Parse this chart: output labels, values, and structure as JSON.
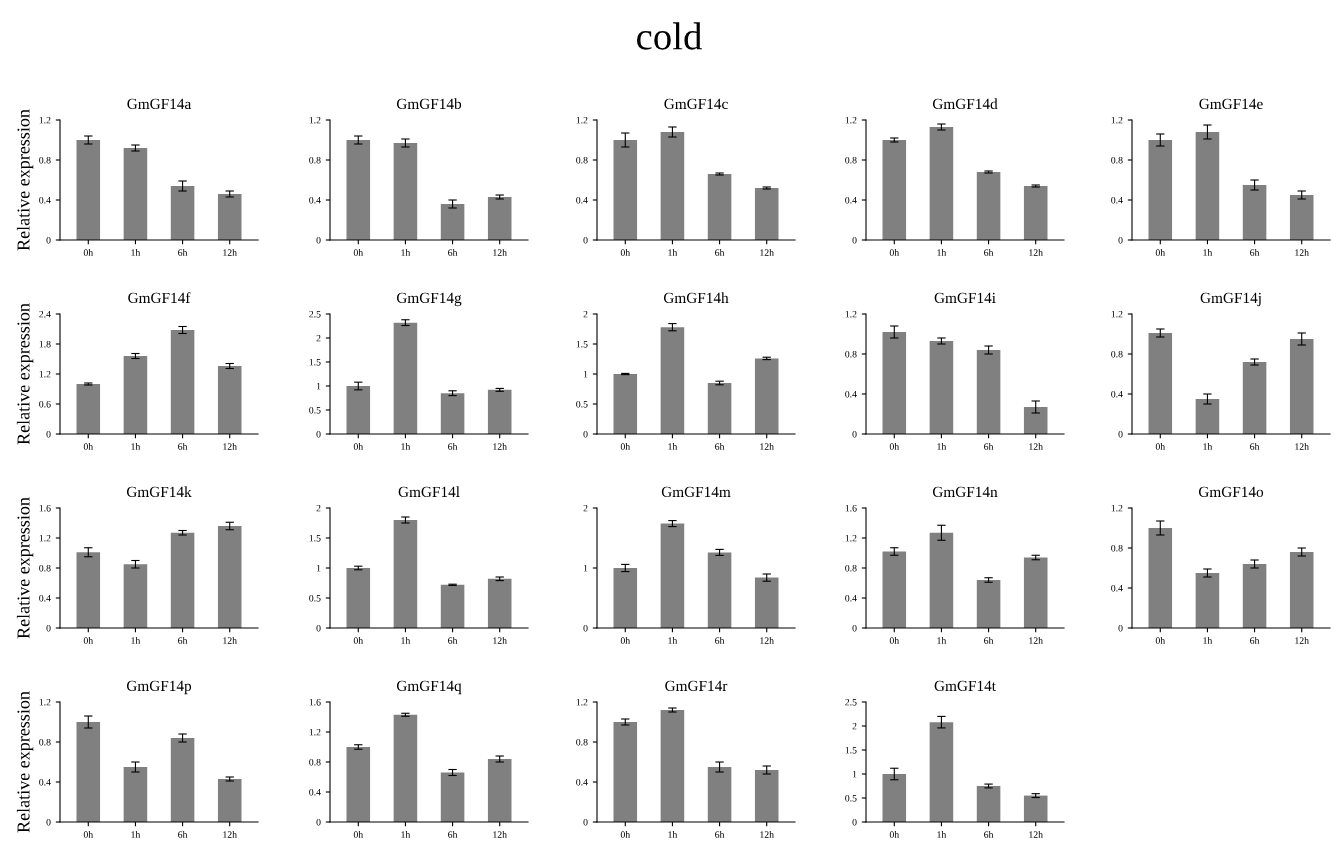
{
  "chart_data": [
    {
      "type": "bar",
      "title": "GmGF14a",
      "ylabel": "Relative expression",
      "annotations": [
        "cold"
      ],
      "categories": [
        "0h",
        "1h",
        "6h",
        "12h"
      ],
      "color": "#808080",
      "values": [
        1.0,
        0.92,
        0.54,
        0.46
      ],
      "errors": [
        0.04,
        0.03,
        0.05,
        0.03
      ],
      "ylim": [
        0,
        1.2
      ],
      "yticks": [
        0,
        0.4,
        0.8,
        1.2
      ],
      "grid": false,
      "legend": false
    },
    {
      "type": "bar",
      "title": "GmGF14b",
      "categories": [
        "0h",
        "1h",
        "6h",
        "12h"
      ],
      "color": "#808080",
      "values": [
        1.0,
        0.97,
        0.36,
        0.43
      ],
      "errors": [
        0.04,
        0.04,
        0.04,
        0.02
      ],
      "ylim": [
        0,
        1.2
      ],
      "yticks": [
        0,
        0.4,
        0.8,
        1.2
      ],
      "grid": false,
      "legend": false
    },
    {
      "type": "bar",
      "title": "GmGF14c",
      "categories": [
        "0h",
        "1h",
        "6h",
        "12h"
      ],
      "color": "#808080",
      "values": [
        1.0,
        1.08,
        0.66,
        0.52
      ],
      "errors": [
        0.07,
        0.05,
        0.01,
        0.01
      ],
      "ylim": [
        0,
        1.2
      ],
      "yticks": [
        0,
        0.4,
        0.8,
        1.2
      ],
      "grid": false,
      "legend": false
    },
    {
      "type": "bar",
      "title": "GmGF14d",
      "categories": [
        "0h",
        "1h",
        "6h",
        "12h"
      ],
      "color": "#808080",
      "values": [
        1.0,
        1.13,
        0.68,
        0.54
      ],
      "errors": [
        0.02,
        0.03,
        0.01,
        0.01
      ],
      "ylim": [
        0,
        1.2
      ],
      "yticks": [
        0,
        0.4,
        0.8,
        1.2
      ],
      "grid": false,
      "legend": false
    },
    {
      "type": "bar",
      "title": "GmGF14e",
      "categories": [
        "0h",
        "1h",
        "6h",
        "12h"
      ],
      "color": "#808080",
      "values": [
        1.0,
        1.08,
        0.55,
        0.45
      ],
      "errors": [
        0.06,
        0.07,
        0.05,
        0.04
      ],
      "ylim": [
        0,
        1.2
      ],
      "yticks": [
        0,
        0.4,
        0.8,
        1.2
      ],
      "grid": false,
      "legend": false
    },
    {
      "type": "bar",
      "title": "GmGF14f",
      "ylabel": "Relative expression",
      "categories": [
        "0h",
        "1h",
        "6h",
        "12h"
      ],
      "color": "#808080",
      "values": [
        1.0,
        1.56,
        2.08,
        1.36
      ],
      "errors": [
        0.02,
        0.05,
        0.07,
        0.05
      ],
      "ylim": [
        0,
        2.4
      ],
      "yticks": [
        0,
        0.6,
        1.2,
        1.8,
        2.4
      ],
      "grid": false,
      "legend": false
    },
    {
      "type": "bar",
      "title": "GmGF14g",
      "categories": [
        "0h",
        "1h",
        "6h",
        "12h"
      ],
      "color": "#808080",
      "values": [
        1.0,
        2.32,
        0.85,
        0.92
      ],
      "errors": [
        0.08,
        0.06,
        0.05,
        0.03
      ],
      "ylim": [
        0,
        2.5
      ],
      "yticks": [
        0,
        0.5,
        1,
        1.5,
        2,
        2.5
      ],
      "grid": false,
      "legend": false
    },
    {
      "type": "bar",
      "title": "GmGF14h",
      "categories": [
        "0h",
        "1h",
        "6h",
        "12h"
      ],
      "color": "#808080",
      "values": [
        1.0,
        1.78,
        0.85,
        1.26
      ],
      "errors": [
        0.01,
        0.06,
        0.03,
        0.02
      ],
      "ylim": [
        0,
        2
      ],
      "yticks": [
        0,
        0.5,
        1,
        1.5,
        2
      ],
      "grid": false,
      "legend": false
    },
    {
      "type": "bar",
      "title": "GmGF14i",
      "categories": [
        "0h",
        "1h",
        "6h",
        "12h"
      ],
      "color": "#808080",
      "values": [
        1.02,
        0.93,
        0.84,
        0.27
      ],
      "errors": [
        0.06,
        0.03,
        0.04,
        0.06
      ],
      "ylim": [
        0,
        1.2
      ],
      "yticks": [
        0,
        0.4,
        0.8,
        1.2
      ],
      "grid": false,
      "legend": false
    },
    {
      "type": "bar",
      "title": "GmGF14j",
      "categories": [
        "0h",
        "1h",
        "6h",
        "12h"
      ],
      "color": "#808080",
      "values": [
        1.01,
        0.35,
        0.72,
        0.95
      ],
      "errors": [
        0.04,
        0.05,
        0.03,
        0.06
      ],
      "ylim": [
        0,
        1.2
      ],
      "yticks": [
        0,
        0.4,
        0.8,
        1.2
      ],
      "grid": false,
      "legend": false
    },
    {
      "type": "bar",
      "title": "GmGF14k",
      "ylabel": "Relative expression",
      "categories": [
        "0h",
        "1h",
        "6h",
        "12h"
      ],
      "color": "#808080",
      "values": [
        1.01,
        0.85,
        1.27,
        1.36
      ],
      "errors": [
        0.06,
        0.05,
        0.03,
        0.05
      ],
      "ylim": [
        0,
        1.6
      ],
      "yticks": [
        0,
        0.4,
        0.8,
        1.2,
        1.6
      ],
      "grid": false,
      "legend": false
    },
    {
      "type": "bar",
      "title": "GmGF14l",
      "categories": [
        "0h",
        "1h",
        "6h",
        "12h"
      ],
      "color": "#808080",
      "values": [
        1.0,
        1.8,
        0.72,
        0.82
      ],
      "errors": [
        0.03,
        0.05,
        0.01,
        0.03
      ],
      "ylim": [
        0,
        2
      ],
      "yticks": [
        0,
        0.5,
        1,
        1.5,
        2
      ],
      "grid": false,
      "legend": false
    },
    {
      "type": "bar",
      "title": "GmGF14m",
      "categories": [
        "0h",
        "1h",
        "6h",
        "12h"
      ],
      "color": "#808080",
      "values": [
        1.0,
        1.74,
        1.26,
        0.84
      ],
      "errors": [
        0.06,
        0.05,
        0.05,
        0.06
      ],
      "ylim": [
        0,
        2
      ],
      "yticks": [
        0,
        1,
        2
      ],
      "grid": false,
      "legend": false
    },
    {
      "type": "bar",
      "title": "GmGF14n",
      "categories": [
        "0h",
        "1h",
        "6h",
        "12h"
      ],
      "color": "#808080",
      "values": [
        1.02,
        1.27,
        0.64,
        0.94
      ],
      "errors": [
        0.05,
        0.1,
        0.03,
        0.03
      ],
      "ylim": [
        0,
        1.6
      ],
      "yticks": [
        0,
        0.4,
        0.8,
        1.2,
        1.6
      ],
      "grid": false,
      "legend": false
    },
    {
      "type": "bar",
      "title": "GmGF14o",
      "categories": [
        "0h",
        "1h",
        "6h",
        "12h"
      ],
      "color": "#808080",
      "values": [
        1.0,
        0.55,
        0.64,
        0.76
      ],
      "errors": [
        0.07,
        0.04,
        0.04,
        0.04
      ],
      "ylim": [
        0,
        1.2
      ],
      "yticks": [
        0,
        0.4,
        0.8,
        1.2
      ],
      "grid": false,
      "legend": false
    },
    {
      "type": "bar",
      "title": "GmGF14p",
      "ylabel": "Relative expression",
      "categories": [
        "0h",
        "1h",
        "6h",
        "12h"
      ],
      "color": "#808080",
      "values": [
        1.0,
        0.55,
        0.84,
        0.43
      ],
      "errors": [
        0.06,
        0.05,
        0.04,
        0.02
      ],
      "ylim": [
        0,
        1.2
      ],
      "yticks": [
        0,
        0.4,
        0.8,
        1.2
      ],
      "grid": false,
      "legend": false
    },
    {
      "type": "bar",
      "title": "GmGF14q",
      "categories": [
        "0h",
        "1h",
        "6h",
        "12h"
      ],
      "color": "#808080",
      "values": [
        1.0,
        1.43,
        0.66,
        0.84
      ],
      "errors": [
        0.03,
        0.02,
        0.04,
        0.04
      ],
      "ylim": [
        0,
        1.6
      ],
      "yticks": [
        0,
        0.4,
        0.8,
        1.2,
        1.6
      ],
      "grid": false,
      "legend": false
    },
    {
      "type": "bar",
      "title": "GmGF14r",
      "categories": [
        "0h",
        "1h",
        "6h",
        "12h"
      ],
      "color": "#808080",
      "values": [
        1.0,
        1.12,
        0.55,
        0.52
      ],
      "errors": [
        0.03,
        0.02,
        0.05,
        0.04
      ],
      "ylim": [
        0,
        1.2
      ],
      "yticks": [
        0,
        0.4,
        0.8,
        1.2
      ],
      "grid": false,
      "legend": false
    },
    {
      "type": "bar",
      "title": "GmGF14t",
      "categories": [
        "0h",
        "1h",
        "6h",
        "12h"
      ],
      "color": "#808080",
      "values": [
        1.0,
        2.08,
        0.75,
        0.55
      ],
      "errors": [
        0.12,
        0.12,
        0.04,
        0.04
      ],
      "ylim": [
        0,
        2.5
      ],
      "yticks": [
        0,
        0.5,
        1,
        1.5,
        2,
        2.5
      ],
      "grid": false,
      "legend": false
    }
  ]
}
